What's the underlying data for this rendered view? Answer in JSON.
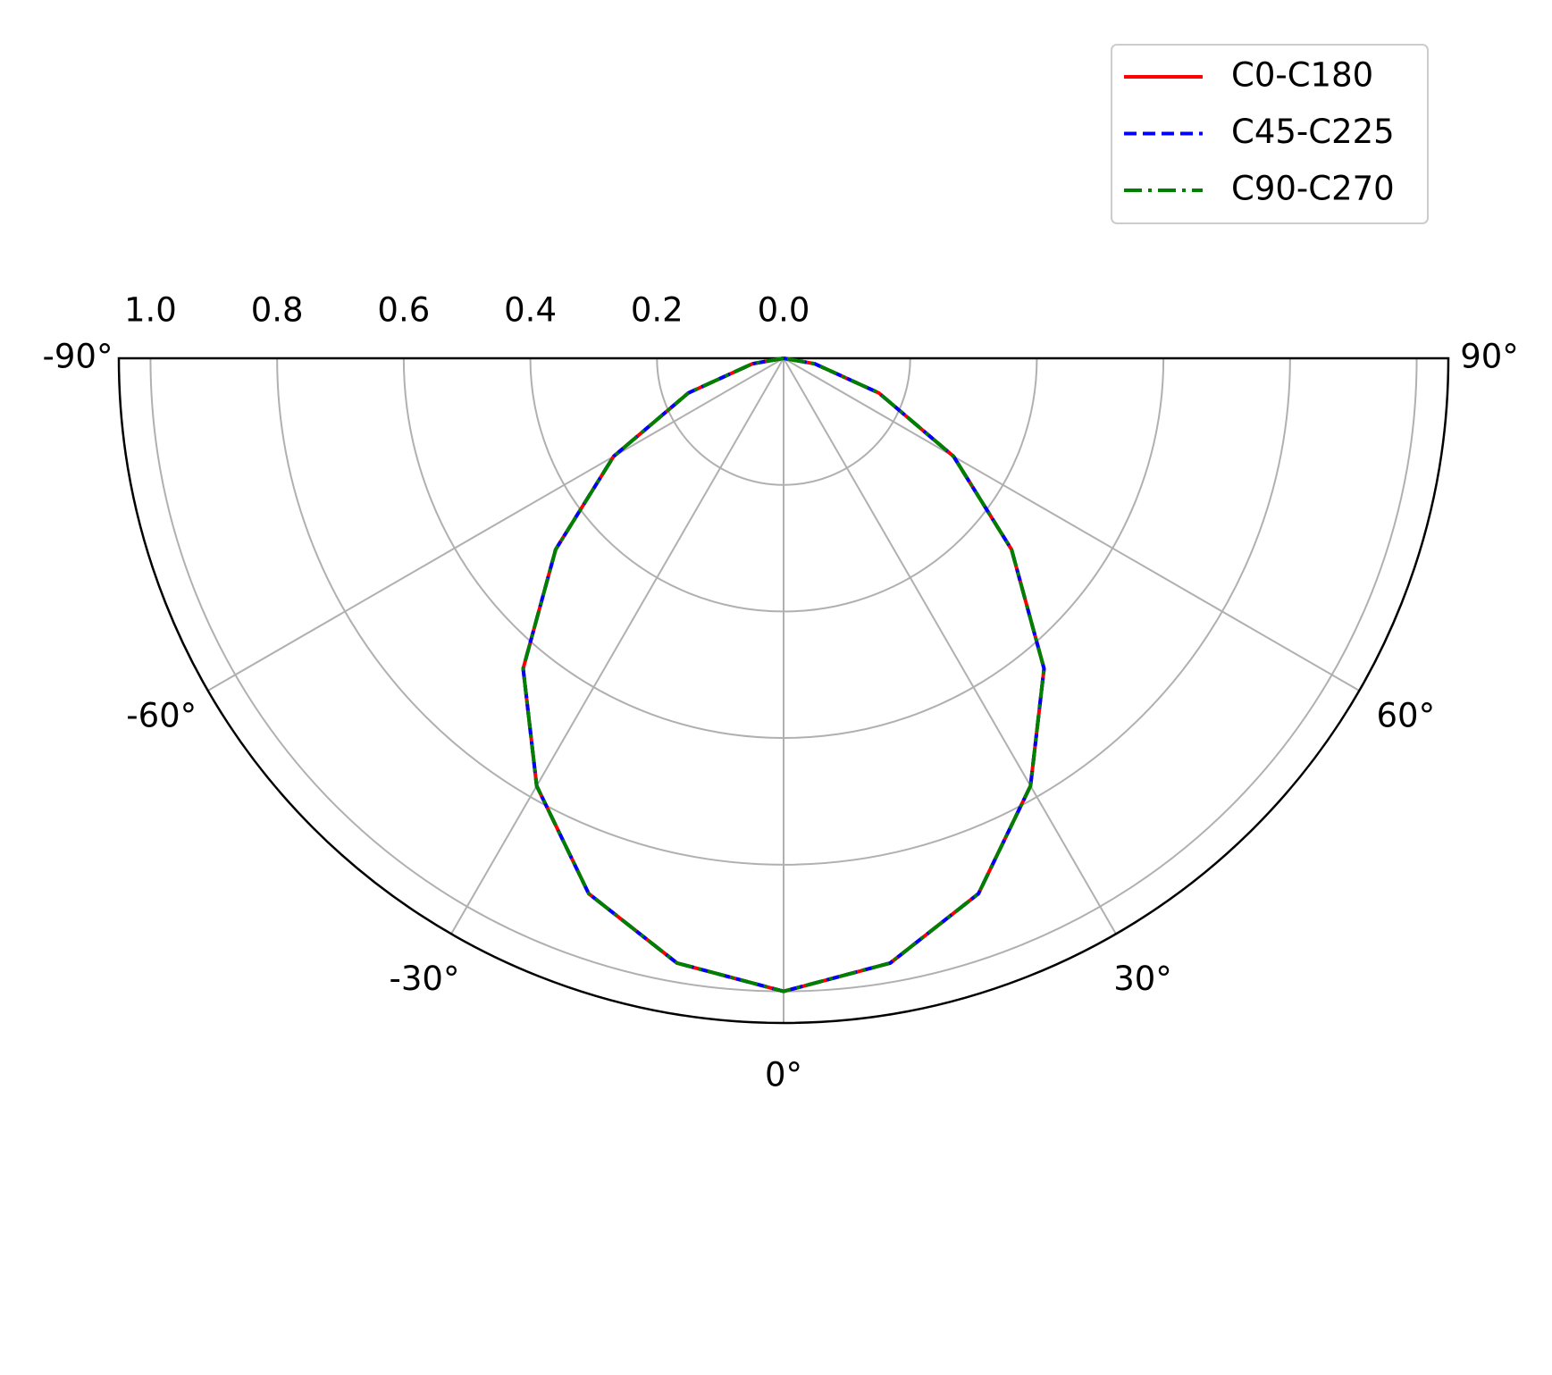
{
  "chart_data": {
    "type": "polar",
    "x": [
      -90,
      -80,
      -70,
      -60,
      -50,
      -40,
      -30,
      -20,
      -10,
      0,
      10,
      20,
      30,
      40,
      50,
      60,
      70,
      80,
      90
    ],
    "series": [
      {
        "name": "C0-C180",
        "color": "#ff0000",
        "dash": "solid",
        "values": [
          0,
          0.05,
          0.16,
          0.31,
          0.47,
          0.64,
          0.78,
          0.9,
          0.97,
          1.0,
          0.97,
          0.9,
          0.78,
          0.64,
          0.47,
          0.31,
          0.16,
          0.05,
          0
        ]
      },
      {
        "name": "C45-C225",
        "color": "#0000ff",
        "dash": "dashed",
        "values": [
          0,
          0.05,
          0.16,
          0.31,
          0.47,
          0.64,
          0.78,
          0.9,
          0.97,
          1.0,
          0.97,
          0.9,
          0.78,
          0.64,
          0.47,
          0.31,
          0.16,
          0.05,
          0
        ]
      },
      {
        "name": "C90-C270",
        "color": "#008000",
        "dash": "dashdot",
        "values": [
          0,
          0.05,
          0.16,
          0.31,
          0.47,
          0.64,
          0.78,
          0.9,
          0.97,
          1.0,
          0.97,
          0.9,
          0.78,
          0.64,
          0.47,
          0.31,
          0.16,
          0.05,
          0
        ]
      }
    ],
    "xlim": [
      -90,
      90
    ],
    "xticks": [
      {
        "value": -90,
        "label": "-90°"
      },
      {
        "value": -60,
        "label": "-60°"
      },
      {
        "value": -30,
        "label": "-30°"
      },
      {
        "value": 0,
        "label": "0°"
      },
      {
        "value": 30,
        "label": "30°"
      },
      {
        "value": 60,
        "label": "60°"
      },
      {
        "value": 90,
        "label": "90°"
      }
    ],
    "ylim": [
      0,
      1.05
    ],
    "yticks": [
      {
        "value": 0,
        "label": "0.0"
      },
      0.2,
      0.4,
      0.6,
      0.8,
      {
        "value": 1,
        "label": "1.0"
      }
    ],
    "grid": true,
    "legend": "upper right"
  }
}
